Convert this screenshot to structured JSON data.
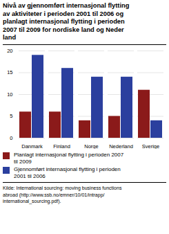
{
  "chart_data": {
    "type": "bar",
    "title": "Nivå av gjennomført internasjonal flytting\nav aktiviteter i perioden 2001 til 2006 og\nplanlagt internasjonal flytting i perioden\n2007 til 2009 for nordiske land og Neder\nland",
    "categories": [
      "Danmark",
      "Finland",
      "Norge",
      "Nederland",
      "Sverige"
    ],
    "series": [
      {
        "name": "Planlagt internasjonal flytting i perioden 2007\ntil 2009",
        "color": "#8B1A1A",
        "values": [
          6,
          6,
          4,
          5,
          11
        ]
      },
      {
        "name": "Gjennomført internasjonal flytting i perioden\n2001 til 2006",
        "color": "#2B3F9E",
        "values": [
          19,
          16,
          14,
          14,
          4
        ]
      }
    ],
    "ylim": [
      0,
      20
    ],
    "yticks": [
      0,
      5,
      10,
      15,
      20
    ],
    "grid": true,
    "legend": "bottom",
    "caption": "Kilde: International sourcing: moving business functions\nabroad (http://www.ssb.no/emner/10/01/intrapp/\ninternational_sourcing.pdf)."
  }
}
